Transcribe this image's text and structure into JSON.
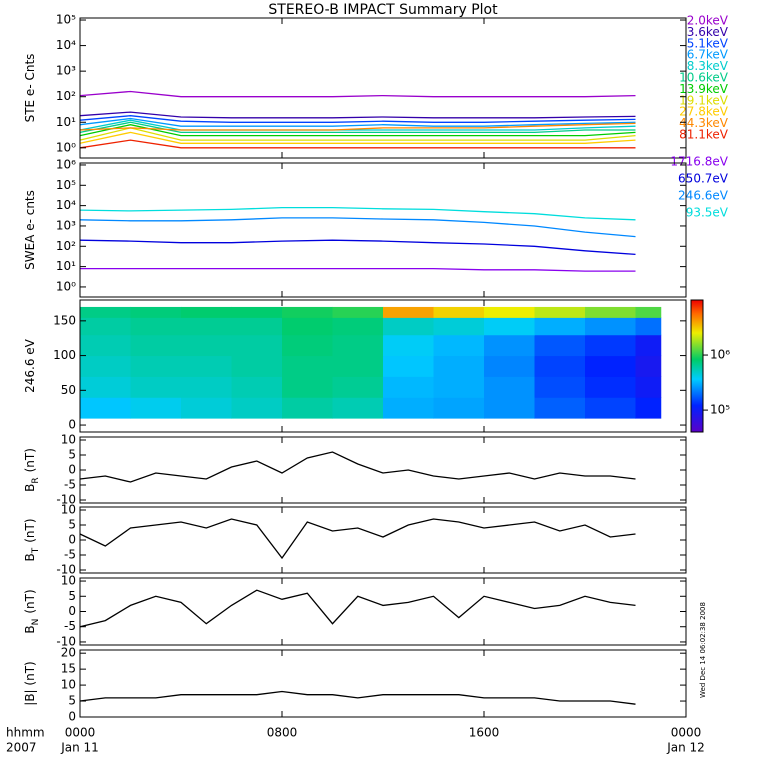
{
  "chart_data": [
    {
      "type": "line",
      "title": "STEREO-B IMPACT Summary Plot",
      "ylabel": {
        "base": "STE e- Cnts"
      },
      "log": true,
      "ylim": [
        0.4,
        120000
      ],
      "yticks": [
        {
          "value": 1,
          "label": "10⁰"
        },
        {
          "value": 10,
          "label": "10¹"
        },
        {
          "value": 100,
          "label": "10²"
        },
        {
          "value": 1000,
          "label": "10³"
        },
        {
          "value": 10000,
          "label": "10⁴"
        },
        {
          "value": 100000,
          "label": "10⁵"
        }
      ],
      "xlim": [
        0,
        24
      ],
      "xticks": [
        0,
        8,
        16,
        24
      ],
      "x": [
        0,
        2,
        4,
        6,
        8,
        10,
        12,
        14,
        16,
        18,
        20,
        22
      ],
      "series": [
        {
          "name": "2.0keV",
          "color": "#9900cc",
          "values": [
            110,
            160,
            100,
            100,
            100,
            100,
            110,
            100,
            100,
            100,
            100,
            110
          ]
        },
        {
          "name": "3.6keV",
          "color": "#3300aa",
          "values": [
            18,
            25,
            16,
            15,
            15,
            15,
            16,
            15,
            15,
            15,
            16,
            17
          ]
        },
        {
          "name": "5.1keV",
          "color": "#0044ff",
          "values": [
            12,
            18,
            11,
            10,
            10,
            10,
            11,
            10,
            10,
            11,
            12,
            13
          ]
        },
        {
          "name": "6.7keV",
          "color": "#0099ff",
          "values": [
            8,
            14,
            7,
            7,
            7,
            7,
            8,
            7,
            7,
            8,
            9,
            10
          ]
        },
        {
          "name": "8.3keV",
          "color": "#00cccc",
          "values": [
            5,
            12,
            5,
            5,
            5,
            5,
            5,
            5,
            5,
            5,
            6,
            7
          ]
        },
        {
          "name": "10.6keV",
          "color": "#00cc88",
          "values": [
            4,
            10,
            4,
            4,
            4,
            4,
            4,
            4,
            4,
            4,
            5,
            5
          ]
        },
        {
          "name": "13.9keV",
          "color": "#00cc00",
          "values": [
            3,
            8,
            3,
            3,
            3,
            3,
            3,
            3,
            3,
            3,
            3,
            4
          ]
        },
        {
          "name": "19.1keV",
          "color": "#dddd00",
          "values": [
            2,
            6,
            2,
            2,
            2,
            2,
            2,
            2,
            2,
            2,
            2,
            3
          ]
        },
        {
          "name": "27.8keV",
          "color": "#ffcc00",
          "values": [
            1.5,
            4,
            1.5,
            1.5,
            1.5,
            1.5,
            1.5,
            1.5,
            1.5,
            1.5,
            1.5,
            2
          ]
        },
        {
          "name": "44.3keV",
          "color": "#ff8800",
          "values": [
            5,
            6,
            5,
            5,
            5,
            5,
            6,
            6,
            6,
            7,
            8,
            9
          ]
        },
        {
          "name": "81.1keV",
          "color": "#ee2200",
          "values": [
            1,
            2,
            1,
            1,
            1,
            1,
            1,
            1,
            1,
            1,
            1,
            1
          ]
        }
      ]
    },
    {
      "type": "line",
      "ylabel": {
        "base": "SWEA e- cnts"
      },
      "log": true,
      "ylim": [
        0.32,
        1250000
      ],
      "yticks": [
        {
          "value": 1,
          "label": "10⁰"
        },
        {
          "value": 10,
          "label": "10¹"
        },
        {
          "value": 100,
          "label": "10²"
        },
        {
          "value": 1000,
          "label": "10³"
        },
        {
          "value": 10000,
          "label": "10⁴"
        },
        {
          "value": 100000,
          "label": "10⁵"
        },
        {
          "value": 1000000,
          "label": "10⁶"
        }
      ],
      "xlim": [
        0,
        24
      ],
      "xticks": [
        0,
        8,
        16,
        24
      ],
      "x": [
        0,
        2,
        4,
        6,
        8,
        10,
        12,
        14,
        16,
        18,
        20,
        22
      ],
      "series": [
        {
          "name": "1716.8eV",
          "color": "#8800ee",
          "values": [
            8,
            8,
            8,
            8,
            8,
            8,
            8,
            8,
            7,
            7,
            6,
            6
          ]
        },
        {
          "name": "650.7eV",
          "color": "#0000dd",
          "values": [
            200,
            180,
            150,
            150,
            180,
            200,
            180,
            150,
            130,
            100,
            60,
            40
          ]
        },
        {
          "name": "246.6eV",
          "color": "#0088ff",
          "values": [
            2000,
            1800,
            1800,
            2000,
            2500,
            2500,
            2200,
            2000,
            1500,
            1000,
            500,
            300
          ]
        },
        {
          "name": "93.5eV",
          "color": "#00dddd",
          "values": [
            6000,
            5500,
            6000,
            6500,
            8000,
            8000,
            7000,
            6500,
            5000,
            4000,
            2500,
            2000
          ]
        }
      ]
    },
    {
      "type": "heatmap",
      "ylabel": {
        "base": "246.6 eV"
      },
      "ylim": [
        -10,
        180
      ],
      "yticks": [
        0,
        50,
        100,
        150
      ],
      "xlim": [
        0,
        24
      ],
      "xticks": [
        0,
        8,
        16,
        24
      ],
      "xbins": [
        0,
        2,
        4,
        6,
        8,
        10,
        12,
        14,
        16,
        18,
        20,
        22,
        23
      ],
      "ybins": [
        10,
        40,
        70,
        100,
        130,
        155,
        170
      ],
      "clim": [
        40000,
        10000000
      ],
      "cticks": [
        {
          "value": 1000000,
          "label": "10⁶"
        },
        {
          "value": 100000,
          "label": "10⁵"
        }
      ],
      "values": [
        [
          350000,
          400000,
          450000,
          500000,
          600000,
          550000,
          300000,
          280000,
          250000,
          180000,
          150000,
          120000
        ],
        [
          450000,
          500000,
          500000,
          550000,
          700000,
          650000,
          320000,
          300000,
          250000,
          160000,
          130000,
          100000
        ],
        [
          500000,
          550000,
          550000,
          600000,
          700000,
          700000,
          350000,
          300000,
          230000,
          150000,
          120000,
          90000
        ],
        [
          550000,
          600000,
          600000,
          600000,
          750000,
          700000,
          380000,
          320000,
          250000,
          170000,
          140000,
          100000
        ],
        [
          600000,
          650000,
          650000,
          650000,
          800000,
          750000,
          500000,
          450000,
          380000,
          300000,
          250000,
          200000
        ],
        [
          700000,
          750000,
          800000,
          800000,
          900000,
          1000000,
          4000000,
          3000000,
          2500000,
          2000000,
          1500000,
          1200000
        ]
      ]
    },
    {
      "type": "line",
      "ylabel": {
        "base": "B",
        "sub": "R",
        "unit": "(nT)"
      },
      "ylim": [
        -11,
        11
      ],
      "yticks": [
        -10,
        -5,
        0,
        5,
        10
      ],
      "xlim": [
        0,
        24
      ],
      "xticks": [
        0,
        8,
        16,
        24
      ],
      "x": [
        0,
        1,
        2,
        3,
        4,
        5,
        6,
        7,
        8,
        9,
        10,
        11,
        12,
        13,
        14,
        15,
        16,
        17,
        18,
        19,
        20,
        21,
        22
      ],
      "series": [
        {
          "color": "#000000",
          "values": [
            -3,
            -2,
            -4,
            -1,
            -2,
            -3,
            1,
            3,
            -1,
            4,
            6,
            2,
            -1,
            0,
            -2,
            -3,
            -2,
            -1,
            -3,
            -1,
            -2,
            -2,
            -3
          ]
        }
      ]
    },
    {
      "type": "line",
      "ylabel": {
        "base": "B",
        "sub": "T",
        "unit": "(nT)"
      },
      "ylim": [
        -11,
        11
      ],
      "yticks": [
        -10,
        -5,
        0,
        5,
        10
      ],
      "xlim": [
        0,
        24
      ],
      "xticks": [
        0,
        8,
        16,
        24
      ],
      "x": [
        0,
        1,
        2,
        3,
        4,
        5,
        6,
        7,
        8,
        9,
        10,
        11,
        12,
        13,
        14,
        15,
        16,
        17,
        18,
        19,
        20,
        21,
        22
      ],
      "series": [
        {
          "color": "#000000",
          "values": [
            2,
            -2,
            4,
            5,
            6,
            4,
            7,
            5,
            -6,
            6,
            3,
            4,
            1,
            5,
            7,
            6,
            4,
            5,
            6,
            3,
            5,
            1,
            2
          ]
        }
      ]
    },
    {
      "type": "line",
      "ylabel": {
        "base": "B",
        "sub": "N",
        "unit": "(nT)"
      },
      "ylim": [
        -11,
        11
      ],
      "yticks": [
        -10,
        -5,
        0,
        5,
        10
      ],
      "xlim": [
        0,
        24
      ],
      "xticks": [
        0,
        8,
        16,
        24
      ],
      "x": [
        0,
        1,
        2,
        3,
        4,
        5,
        6,
        7,
        8,
        9,
        10,
        11,
        12,
        13,
        14,
        15,
        16,
        17,
        18,
        19,
        20,
        21,
        22
      ],
      "series": [
        {
          "color": "#000000",
          "values": [
            -5,
            -3,
            2,
            5,
            3,
            -4,
            2,
            7,
            4,
            6,
            -4,
            5,
            2,
            3,
            5,
            -2,
            5,
            3,
            1,
            2,
            5,
            3,
            2
          ]
        }
      ]
    },
    {
      "type": "line",
      "ylabel": {
        "base": "|B| (nT)"
      },
      "ylim": [
        0,
        21
      ],
      "yticks": [
        0,
        5,
        10,
        15,
        20
      ],
      "xlim": [
        0,
        24
      ],
      "xticks": [
        {
          "value": 0,
          "label": "0000"
        },
        {
          "value": 8,
          "label": "0800"
        },
        {
          "value": 16,
          "label": "1600"
        },
        {
          "value": 24,
          "label": "0000"
        }
      ],
      "date_labels": [
        {
          "value": 0,
          "label": "Jan 11"
        },
        {
          "value": 24,
          "label": "Jan 12"
        }
      ],
      "x_unit_label": "hhmm",
      "year_label": "2007",
      "annotation": "Wed Dec 14 06:02:38 2008",
      "x": [
        0,
        1,
        2,
        3,
        4,
        5,
        6,
        7,
        8,
        9,
        10,
        11,
        12,
        13,
        14,
        15,
        16,
        17,
        18,
        19,
        20,
        21,
        22
      ],
      "series": [
        {
          "color": "#000000",
          "values": [
            5,
            6,
            6,
            6,
            7,
            7,
            7,
            7,
            8,
            7,
            7,
            6,
            7,
            7,
            7,
            7,
            6,
            6,
            6,
            5,
            5,
            5,
            4
          ]
        }
      ]
    }
  ]
}
